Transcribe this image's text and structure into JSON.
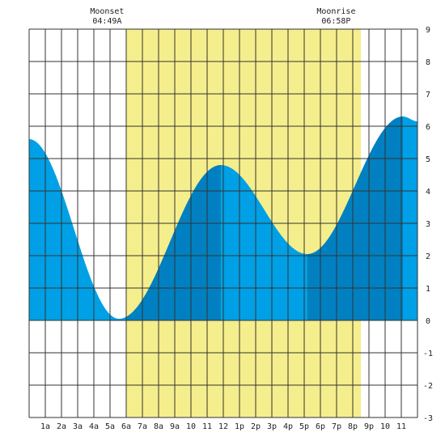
{
  "chart_data": {
    "type": "area",
    "x_unit": "hour of day",
    "xlim": [
      0,
      24
    ],
    "ylim": [
      -3,
      9
    ],
    "grid": true,
    "y_ticks": [
      "-3",
      "-2",
      "-1",
      "0",
      "1",
      "2",
      "3",
      "4",
      "5",
      "6",
      "7",
      "8",
      "9"
    ],
    "x_ticks": [
      {
        "hour": 1,
        "label": "1a"
      },
      {
        "hour": 2,
        "label": "2a"
      },
      {
        "hour": 3,
        "label": "3a"
      },
      {
        "hour": 4,
        "label": "4a"
      },
      {
        "hour": 5,
        "label": "5a"
      },
      {
        "hour": 6,
        "label": "6a"
      },
      {
        "hour": 7,
        "label": "7a"
      },
      {
        "hour": 8,
        "label": "8a"
      },
      {
        "hour": 9,
        "label": "9a"
      },
      {
        "hour": 10,
        "label": "10"
      },
      {
        "hour": 11,
        "label": "11"
      },
      {
        "hour": 12,
        "label": "12"
      },
      {
        "hour": 13,
        "label": "1p"
      },
      {
        "hour": 14,
        "label": "2p"
      },
      {
        "hour": 15,
        "label": "3p"
      },
      {
        "hour": 16,
        "label": "4p"
      },
      {
        "hour": 17,
        "label": "5p"
      },
      {
        "hour": 18,
        "label": "6p"
      },
      {
        "hour": 19,
        "label": "7p"
      },
      {
        "hour": 20,
        "label": "8p"
      },
      {
        "hour": 21,
        "label": "9p"
      },
      {
        "hour": 22,
        "label": "10"
      },
      {
        "hour": 23,
        "label": "11"
      }
    ],
    "tide_extrema": [
      {
        "hour": 0,
        "height": 5.6
      },
      {
        "hour": 5.55,
        "height": 0.05
      },
      {
        "hour": 11.85,
        "height": 4.8
      },
      {
        "hour": 17.2,
        "height": 2.05
      },
      {
        "hour": 23.1,
        "height": 6.3
      },
      {
        "hour": 24,
        "height": 6.15
      }
    ],
    "daylight": {
      "start_hour": 6.0,
      "end_hour": 20.5
    },
    "dark_bands": [
      [
        6.0,
        11.85
      ],
      [
        17.2,
        23.1
      ]
    ],
    "annotations": {
      "moonset": {
        "label": "Moonset",
        "time": "04:49A",
        "hour": 4.82
      },
      "moonrise": {
        "label": "Moonrise",
        "time": "06:58P",
        "hour": 18.97
      }
    },
    "colors": {
      "water_light": "#00a0e6",
      "water_dark": "#0080c0",
      "daylight": "#f5ee8c",
      "grid": "#333333",
      "background": "#ffffff"
    }
  }
}
